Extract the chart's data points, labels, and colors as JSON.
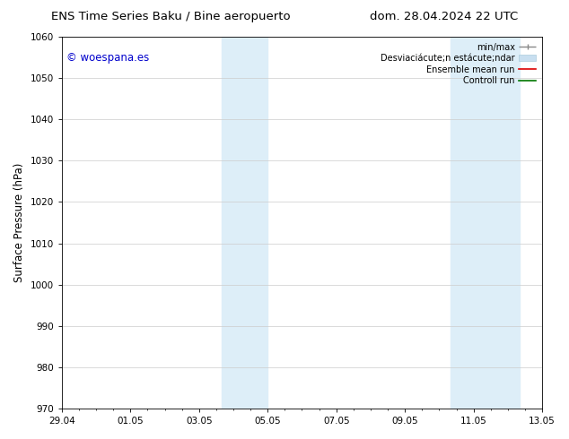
{
  "title_left": "ENS Time Series Baku / Bine aeropuerto",
  "title_right": "dom. 28.04.2024 22 UTC",
  "ylabel": "Surface Pressure (hPa)",
  "ylim": [
    970,
    1060
  ],
  "yticks": [
    970,
    980,
    990,
    1000,
    1010,
    1020,
    1030,
    1040,
    1050,
    1060
  ],
  "xtick_labels": [
    "29.04",
    "01.05",
    "03.05",
    "05.05",
    "07.05",
    "09.05",
    "11.05",
    "13.05"
  ],
  "xtick_positions": [
    0,
    2,
    4,
    6,
    8,
    10,
    12,
    14
  ],
  "xlim": [
    0,
    14
  ],
  "shaded_bands": [
    {
      "x_start": 4.67,
      "x_end": 6.0
    },
    {
      "x_start": 11.33,
      "x_end": 12.0
    },
    {
      "x_start": 12.0,
      "x_end": 13.33
    }
  ],
  "watermark_text": "© woespana.es",
  "watermark_color": "#0000cc",
  "bg_color": "#ffffff",
  "plot_bg_color": "#ffffff",
  "grid_color": "#cccccc",
  "shade_color": "#ddeef8",
  "tick_label_fontsize": 7.5,
  "axis_label_fontsize": 8.5,
  "title_fontsize": 9.5
}
